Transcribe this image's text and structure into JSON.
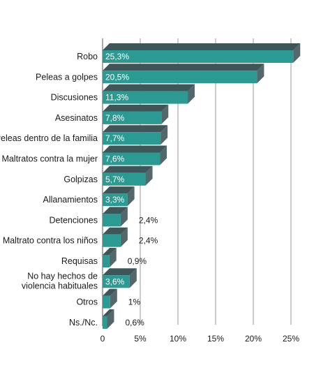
{
  "chart_data": {
    "type": "bar",
    "orientation": "horizontal",
    "title": "",
    "xlabel": "",
    "ylabel": "",
    "xlim": [
      0,
      25
    ],
    "categories": [
      "Robo",
      "Peleas a golpes",
      "Discusiones",
      "Asesinatos",
      "Peleas dentro de la familia",
      "Maltratos contra la mujer",
      "Golpizas",
      "Allanamientos",
      "Detenciones",
      "Maltrato contra los niños",
      "Requisas",
      "No hay hechos de violencia habituales",
      "Otros",
      "Ns./Nc."
    ],
    "values": [
      25.3,
      20.5,
      11.3,
      7.8,
      7.7,
      7.6,
      5.7,
      3.3,
      2.4,
      2.4,
      0.9,
      3.6,
      1,
      0.6
    ],
    "value_labels": [
      "25,3%",
      "20,5%",
      "11,3%",
      "7,8%",
      "7,7%",
      "7,6%",
      "5,7%",
      "3,3%",
      "2,4%",
      "2,4%",
      "0,9%",
      "3,6%",
      "1%",
      "0,6%"
    ],
    "ticks": [
      0,
      5,
      10,
      15,
      20,
      25
    ],
    "tick_labels": [
      "0",
      "5%",
      "10%",
      "15%",
      "20%",
      "25%"
    ],
    "grid": true,
    "colors": {
      "bar_front": "#2a9a93",
      "bar_top": "#3f5658",
      "bar_side": "#53686a",
      "label_on_bar": "#ffffff",
      "label_outside": "#1a1a1a",
      "grid": "#9a9a9a"
    }
  }
}
